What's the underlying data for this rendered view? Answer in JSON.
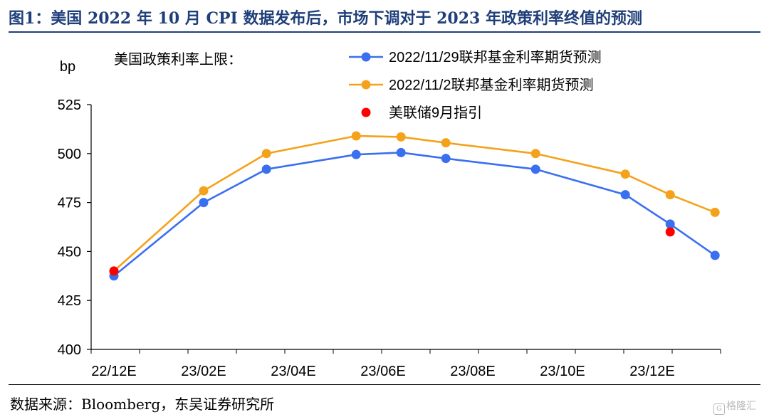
{
  "header": {
    "title": "图1：美国 2022 年 10 月 CPI 数据发布后，市场下调对于 2023 年政策利率终值的预测"
  },
  "footer": {
    "source": "数据来源：Bloomberg，东吴证券研究所",
    "watermark": "格隆汇"
  },
  "chart_data": {
    "type": "line",
    "ylabel": "bp",
    "annotation": "美国政策利率上限：",
    "ylim": [
      400,
      525
    ],
    "yticks": [
      400,
      425,
      450,
      475,
      500,
      525
    ],
    "xticks": [
      "22/12E",
      "23/02E",
      "23/04E",
      "23/06E",
      "23/08E",
      "23/10E",
      "23/12E"
    ],
    "legend_position": "top",
    "grid": false,
    "series": [
      {
        "name": "2022/11/29联邦基金利率期货预测",
        "color": "#3a6ff0",
        "marker": "circle",
        "points": [
          {
            "x": 0.0,
            "y": 437.5
          },
          {
            "x": 1.0,
            "y": 475
          },
          {
            "x": 1.7,
            "y": 492
          },
          {
            "x": 2.7,
            "y": 499.5
          },
          {
            "x": 3.2,
            "y": 500.5
          },
          {
            "x": 3.7,
            "y": 497.5
          },
          {
            "x": 4.7,
            "y": 492
          },
          {
            "x": 5.7,
            "y": 479
          },
          {
            "x": 6.2,
            "y": 464
          },
          {
            "x": 6.7,
            "y": 448
          }
        ]
      },
      {
        "name": "2022/11/2联邦基金利率期货预测",
        "color": "#f5a21b",
        "marker": "circle",
        "points": [
          {
            "x": 0.0,
            "y": 440
          },
          {
            "x": 1.0,
            "y": 481
          },
          {
            "x": 1.7,
            "y": 500
          },
          {
            "x": 2.7,
            "y": 509
          },
          {
            "x": 3.2,
            "y": 508.5
          },
          {
            "x": 3.7,
            "y": 505.5
          },
          {
            "x": 4.7,
            "y": 500
          },
          {
            "x": 5.7,
            "y": 489.5
          },
          {
            "x": 6.2,
            "y": 479
          },
          {
            "x": 6.7,
            "y": 470
          }
        ]
      },
      {
        "name": "美联储9月指引",
        "color": "#ff0000",
        "marker": "circle",
        "line": false,
        "points": [
          {
            "x": 0.0,
            "y": 440
          },
          {
            "x": 6.2,
            "y": 460
          }
        ]
      }
    ]
  }
}
